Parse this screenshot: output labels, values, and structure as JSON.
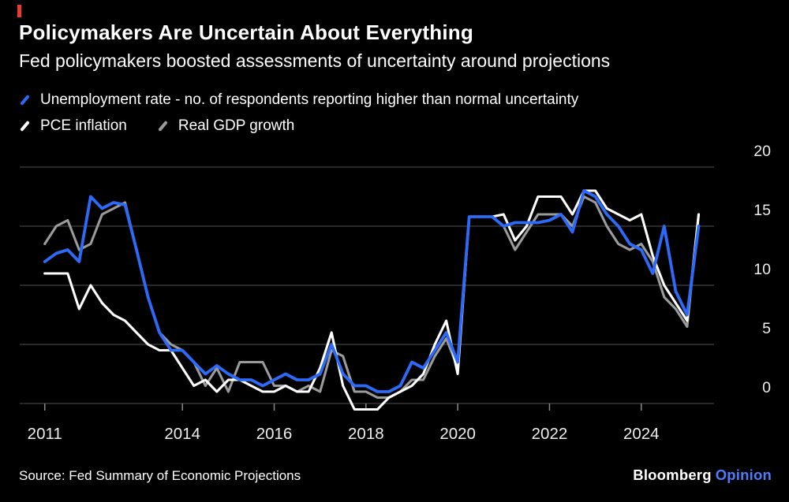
{
  "brand": {
    "name": "Bloomberg",
    "unit": "Opinion",
    "opinion_color": "#4d7dfc",
    "accent_red": "#e93a38"
  },
  "chart_data": {
    "type": "line",
    "title": "Policymakers Are Uncertain About Everything",
    "subtitle": "Fed policymakers boosted assessments of uncertainty around projections",
    "source": "Source: Fed Summary of Economic Projections",
    "legend_position": "top-left",
    "grid": true,
    "colors": {
      "background": "#000000",
      "grid": "#525252",
      "tick": "#8a8a8a",
      "axis_text": "#ededed"
    },
    "xlim": [
      2010.85,
      2025.5
    ],
    "ylim": [
      -1.5,
      20
    ],
    "y_ticks": [
      0,
      5,
      10,
      15,
      20
    ],
    "x_ticks": [
      2011,
      2014,
      2016,
      2018,
      2020,
      2022,
      2024
    ],
    "x_tick_labels": [
      "2011",
      "2014",
      "2016",
      "2018",
      "2020",
      "2022",
      "2024"
    ],
    "x": [
      2011,
      2011.25,
      2011.5,
      2011.75,
      2012,
      2012.25,
      2012.5,
      2012.75,
      2013,
      2013.25,
      2013.5,
      2013.75,
      2014,
      2014.25,
      2014.5,
      2014.75,
      2015,
      2015.25,
      2015.5,
      2015.75,
      2016,
      2016.25,
      2016.5,
      2016.75,
      2017,
      2017.25,
      2017.5,
      2017.75,
      2018,
      2018.25,
      2018.5,
      2018.75,
      2019,
      2019.25,
      2019.5,
      2019.75,
      2020,
      2020.25,
      2020.5,
      2020.75,
      2021,
      2021.25,
      2021.5,
      2021.75,
      2022,
      2022.25,
      2022.5,
      2022.75,
      2023,
      2023.25,
      2023.5,
      2023.75,
      2024,
      2024.25,
      2024.5,
      2024.75,
      2025,
      2025.25
    ],
    "series": [
      {
        "id": "unemployment-rate",
        "name": "Unemployment rate - no. of respondents reporting higher than normal uncertainty",
        "color": "#2d6af7",
        "values": [
          12,
          12.7,
          13,
          12,
          17.5,
          16.5,
          17,
          16.8,
          13,
          9,
          6,
          4.5,
          4.5,
          3.5,
          2.5,
          3.2,
          2.5,
          2,
          2,
          1.5,
          2,
          2.5,
          2,
          2,
          2.5,
          5,
          2.5,
          1.5,
          1.5,
          1,
          1,
          1.5,
          3.5,
          3,
          4.5,
          6,
          3.5,
          15.8,
          15.8,
          15.8,
          15,
          15.3,
          15.3,
          15.3,
          15.5,
          16,
          14.5,
          18,
          17.5,
          16,
          15,
          13.5,
          13,
          11,
          15,
          9.5,
          7.5,
          15
        ]
      },
      {
        "id": "pce-inflation",
        "name": "PCE inflation",
        "color": "#ffffff",
        "values": [
          11,
          11,
          11,
          8,
          10,
          8.5,
          7.5,
          7,
          6,
          5,
          4.5,
          4.5,
          3,
          1.5,
          2,
          1,
          2,
          2,
          1.5,
          1,
          1,
          1.5,
          1,
          1,
          3,
          6,
          1.5,
          -0.5,
          -0.5,
          -0.5,
          0.5,
          1,
          1.5,
          2.5,
          5,
          7,
          2.5,
          15.8,
          15.8,
          15.8,
          16,
          13.8,
          15,
          17.5,
          17.5,
          17.5,
          16,
          18,
          18,
          16.5,
          16,
          15.5,
          16,
          12.5,
          10,
          8.5,
          7,
          16
        ]
      },
      {
        "id": "real-gdp-growth",
        "name": "Real GDP growth",
        "color": "#9b9b9b",
        "values": [
          13.5,
          15,
          15.5,
          13,
          13.5,
          16,
          16.5,
          17,
          13,
          9,
          6,
          5,
          4.5,
          3.5,
          1.5,
          3,
          1,
          3.5,
          3.5,
          3.5,
          1.5,
          1.5,
          1,
          1.5,
          1,
          4.5,
          4,
          1,
          1,
          0.5,
          0.5,
          1,
          2,
          2,
          4,
          5.5,
          3,
          15.8,
          15.8,
          15.8,
          15,
          13,
          14.5,
          16,
          16,
          16,
          15,
          17.5,
          17,
          15,
          13.5,
          13,
          13.5,
          12,
          9,
          8,
          6.5,
          16
        ]
      }
    ]
  }
}
